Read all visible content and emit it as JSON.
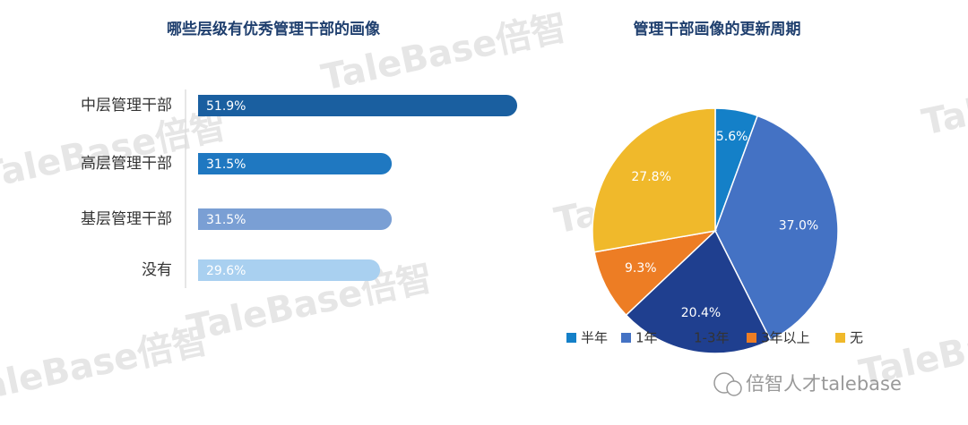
{
  "chart_data": [
    {
      "type": "bar",
      "orientation": "horizontal",
      "title": "哪些层级有优秀管理干部的画像",
      "categories": [
        "中层管理干部",
        "高层管理干部",
        "基层管理干部",
        "没有"
      ],
      "values": [
        51.9,
        31.5,
        31.5,
        29.6
      ],
      "value_labels": [
        "51.9%",
        "31.5%",
        "31.5%",
        "29.6%"
      ],
      "colors": [
        "#1a5fa0",
        "#1f78c1",
        "#7a9fd4",
        "#a9d0f0"
      ]
    },
    {
      "type": "pie",
      "title": "管理干部画像的更新周期",
      "categories": [
        "半年",
        "1年",
        "1-3年",
        "3年以上",
        "无"
      ],
      "values": [
        5.6,
        37.0,
        20.4,
        9.3,
        27.8
      ],
      "value_labels": [
        "5.6%",
        "37.0%",
        "20.4%",
        "9.3%",
        "27.8%"
      ],
      "colors": [
        "#1480c8",
        "#4472c4",
        "#1f3f8f",
        "#ed7d24",
        "#f0b92b"
      ],
      "legend": "bottom"
    }
  ],
  "watermark": "TaleBase倍智",
  "footer": "倍智人才talebase"
}
